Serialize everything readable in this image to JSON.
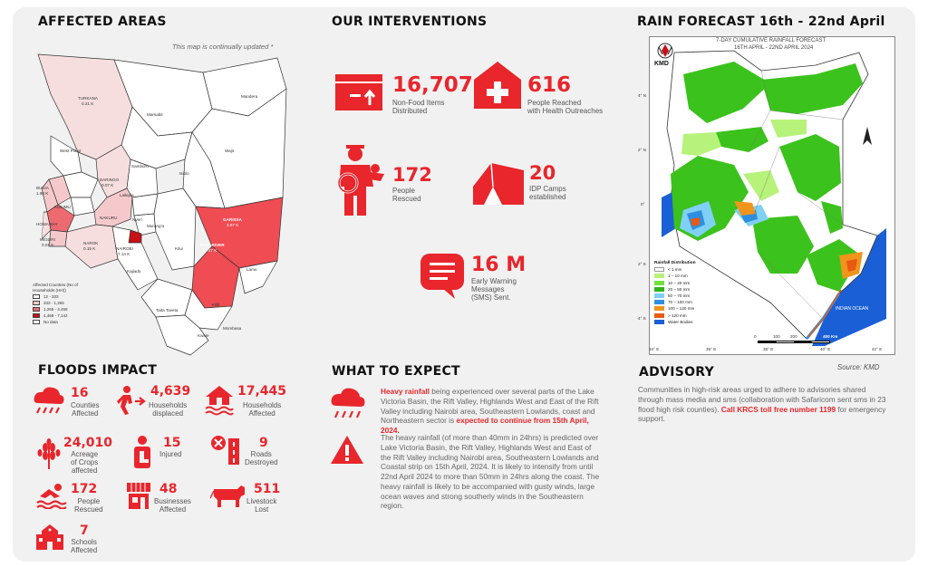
{
  "colors": {
    "accent": "#e8262c",
    "dark_red": "#b01018",
    "green": "#3bc21c",
    "blue": "#1a5fd6"
  },
  "affected": {
    "title": "AFFECTED AREAS",
    "note": "This map is continually updated *",
    "labels": [
      {
        "t": "TURKANA"
      },
      {
        "t": "0.21 K"
      },
      {
        "t": "Marsabit"
      },
      {
        "t": "Mandera"
      },
      {
        "t": "Wajir"
      },
      {
        "t": "West Pokot"
      },
      {
        "t": "Samburu"
      },
      {
        "t": "Isiolo"
      },
      {
        "t": "Laikipia"
      },
      {
        "t": "BARINGO"
      },
      {
        "t": "0.07 K"
      },
      {
        "t": "BUSIA"
      },
      {
        "t": "1.86 K"
      },
      {
        "t": "KISUMU"
      },
      {
        "t": "HOMA BAY"
      },
      {
        "t": "MIGORI"
      },
      {
        "t": "0.01 K"
      },
      {
        "t": "NAROK"
      },
      {
        "t": "0.15 K"
      },
      {
        "t": "NAKURU"
      },
      {
        "t": "NAIROBI"
      },
      {
        "t": "7.14 K"
      },
      {
        "t": "Kajiado"
      },
      {
        "t": "Kitui"
      },
      {
        "t": "Nyeri"
      },
      {
        "t": "Murang'a"
      },
      {
        "t": "GARISSA"
      },
      {
        "t": "3.97 K"
      },
      {
        "t": "TANA RIVER"
      },
      {
        "t": "4.47 K"
      },
      {
        "t": "Lamu"
      },
      {
        "t": "Taita Taveta"
      },
      {
        "t": "Kilifi"
      },
      {
        "t": "Kwale"
      },
      {
        "t": "Mombasa"
      }
    ],
    "legend_title": "Affected Counties (No of Households (HH))",
    "legend": [
      {
        "label": "12 - 333",
        "color": "#ffffff"
      },
      {
        "label": "333 - 1,265",
        "color": "#f5c9cb"
      },
      {
        "label": "1,265 - 4,469",
        "color": "#ec6a70"
      },
      {
        "label": "4,469 - 7,142",
        "color": "#c81018"
      },
      {
        "label": "No data",
        "color": "#ffffff"
      }
    ]
  },
  "interventions": {
    "title": "OUR INTERVENTIONS",
    "items": [
      {
        "num": "16,707",
        "l1": "Non-Food Items",
        "l2": "Distributed",
        "icon": "box-icon"
      },
      {
        "num": "616",
        "l1": "People Reached",
        "l2": "with Health Outreaches",
        "icon": "health-icon"
      },
      {
        "num": "172",
        "l1": "People",
        "l2": "Rescued",
        "icon": "rescuer-icon"
      },
      {
        "num": "20",
        "l1": "IDP Camps",
        "l2": "established",
        "icon": "tent-icon"
      },
      {
        "num": "16 M",
        "l1": "Early Warning",
        "l2": "Messages",
        "l3": "(SMS) Sent.",
        "icon": "message-icon"
      }
    ]
  },
  "rain": {
    "title": "RAIN FORECAST 16th  - 22nd April",
    "map_header_1": "7-DAY CUMULATIVE RAINFALL FORECAST",
    "map_header_2": "16TH APRIL - 22ND APRIL 2024",
    "logo": "KMD",
    "lat_labels": [
      "4° N",
      "2° N",
      "0°",
      "2° S",
      "4° S"
    ],
    "lon_labels": [
      "34° E",
      "36° E",
      "38° E",
      "40° E",
      "42° E"
    ],
    "scale": [
      "0",
      "100",
      "200",
      "400 Km"
    ],
    "ocean": "INDIAN OCEAN",
    "legend_title": "Rainfall Distribution",
    "legend": [
      {
        "label": "< 1 mm",
        "color": "#ffffff"
      },
      {
        "label": "1 – 10 mm",
        "color": "#b7f27a"
      },
      {
        "label": "10 – 20 mm",
        "color": "#6ee13a"
      },
      {
        "label": "20 – 50 mm",
        "color": "#2fb41a"
      },
      {
        "label": "50 – 70 mm",
        "color": "#7fd0f5"
      },
      {
        "label": "70 – 100 mm",
        "color": "#2e8fe0"
      },
      {
        "label": "100 – 120 mm",
        "color": "#f0941c"
      },
      {
        "label": "> 120 mm",
        "color": "#e85a10"
      },
      {
        "label": "Water Bodies",
        "color": "#1a5fd6"
      }
    ],
    "source": "Source: KMD"
  },
  "floods": {
    "title": "FLOODS IMPACT",
    "items": [
      {
        "num": "16",
        "l1": "Counties",
        "l2": "Affected",
        "icon": "rain-cloud-icon"
      },
      {
        "num": "4,639",
        "l1": "Households",
        "l2": "displaced",
        "icon": "displaced-person-icon"
      },
      {
        "num": "17,445",
        "l1": "Households",
        "l2": "Affected",
        "icon": "flooded-house-icon"
      },
      {
        "num": "24,010",
        "l1": "Acreage",
        "l2": "of Crops",
        "l3": "affected",
        "icon": "crops-icon"
      },
      {
        "num": "15",
        "l1": "Injured",
        "l2": "",
        "icon": "injured-icon"
      },
      {
        "num": "9",
        "l1": "Roads",
        "l2": "Destroyed",
        "icon": "road-icon"
      },
      {
        "num": "172",
        "l1": "People",
        "l2": "Rescued",
        "icon": "swimmer-icon"
      },
      {
        "num": "48",
        "l1": "Businesses",
        "l2": "Affected",
        "icon": "shop-icon"
      },
      {
        "num": "511",
        "l1": "Livestock",
        "l2": "Lost",
        "icon": "cow-icon"
      },
      {
        "num": "7",
        "l1": "Schools",
        "l2": "Affected",
        "icon": "school-icon"
      }
    ]
  },
  "expect": {
    "title": "WHAT TO EXPECT",
    "p1_hl": "Heavy rainfall",
    "p1_a": " being experienced over several parts of the Lake Victoria Basin, the Rift Valley, Highlands West and East of the Rift Valley including Nairobi area, Southeastern Lowlands, coast and Northeastern sector is ",
    "p1_hl2": "expected to continue from 15th April, 2024.",
    "p2": "The heavy rainfall (of more than 40mm in 24hrs) is predicted over Lake Victoria Basin, the Rift Valley, Highlands West and East of the Rift Valley including Nairobi area, Southeastern Lowlands and Coastal strip on 15th April, 2024. It is likely to intensify from until 22nd April 2024 to more than 50mm in 24hrs along the coast. The heavy rainfall is likely to be accompanied with gusty winds, large ocean waves and strong southerly winds in the Southeastern region."
  },
  "advisory": {
    "title": "ADVISORY",
    "text": "Communities in high-risk areas urged to adhere to advisories shared through mass media and sms (collaboration with Safaricom sent sms in 23 flood high risk counties). ",
    "hl": "Call KRCS toll free number 1199",
    "tail": " for emergency support."
  }
}
